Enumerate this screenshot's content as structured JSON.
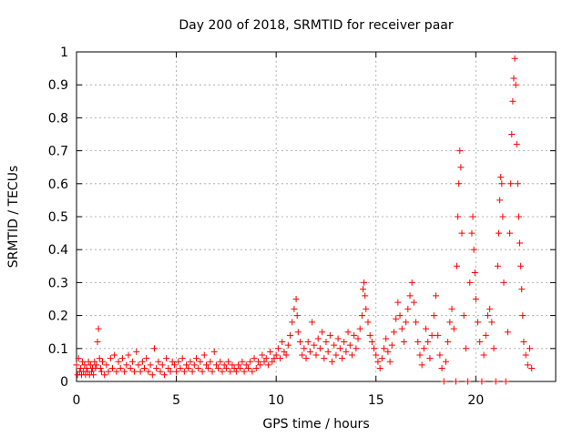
{
  "chart_data": {
    "type": "scatter",
    "title": "Day 200 of 2018, SRMTID for receiver paar",
    "xlabel": "GPS time / hours",
    "ylabel": "SRMTID / TECUs",
    "xlim": [
      0,
      24
    ],
    "ylim": [
      0,
      1
    ],
    "xticks": [
      0,
      5,
      10,
      15,
      20
    ],
    "yticks": [
      0,
      0.1,
      0.2,
      0.3,
      0.4,
      0.5,
      0.6,
      0.7,
      0.8,
      0.9,
      1
    ],
    "xtick_labels": [
      "0",
      "5",
      "10",
      "15",
      "20"
    ],
    "ytick_labels": [
      "0",
      "0.1",
      "0.2",
      "0.3",
      "0.4",
      "0.5",
      "0.6",
      "0.7",
      "0.8",
      "0.9",
      "1"
    ],
    "grid": true,
    "marker": "+",
    "series": [
      {
        "name": "SRMTID",
        "color": "#ff0000",
        "points": [
          [
            0.0,
            0.05
          ],
          [
            0.05,
            0.02
          ],
          [
            0.1,
            0.07
          ],
          [
            0.15,
            0.03
          ],
          [
            0.2,
            0.04
          ],
          [
            0.25,
            0.02
          ],
          [
            0.3,
            0.06
          ],
          [
            0.35,
            0.03
          ],
          [
            0.4,
            0.05
          ],
          [
            0.45,
            0.02
          ],
          [
            0.5,
            0.04
          ],
          [
            0.55,
            0.03
          ],
          [
            0.6,
            0.06
          ],
          [
            0.65,
            0.02
          ],
          [
            0.7,
            0.05
          ],
          [
            0.75,
            0.03
          ],
          [
            0.8,
            0.04
          ],
          [
            0.85,
            0.02
          ],
          [
            0.9,
            0.06
          ],
          [
            0.95,
            0.04
          ],
          [
            1.0,
            0.05
          ],
          [
            1.05,
            0.12
          ],
          [
            1.1,
            0.16
          ],
          [
            1.15,
            0.07
          ],
          [
            1.2,
            0.04
          ],
          [
            1.25,
            0.03
          ],
          [
            1.3,
            0.06
          ],
          [
            1.4,
            0.02
          ],
          [
            1.5,
            0.05
          ],
          [
            1.6,
            0.03
          ],
          [
            1.7,
            0.07
          ],
          [
            1.8,
            0.04
          ],
          [
            1.9,
            0.08
          ],
          [
            2.0,
            0.03
          ],
          [
            2.1,
            0.06
          ],
          [
            2.2,
            0.04
          ],
          [
            2.3,
            0.07
          ],
          [
            2.4,
            0.03
          ],
          [
            2.5,
            0.05
          ],
          [
            2.6,
            0.08
          ],
          [
            2.7,
            0.04
          ],
          [
            2.8,
            0.06
          ],
          [
            2.9,
            0.03
          ],
          [
            3.0,
            0.09
          ],
          [
            3.1,
            0.05
          ],
          [
            3.2,
            0.03
          ],
          [
            3.3,
            0.06
          ],
          [
            3.4,
            0.04
          ],
          [
            3.5,
            0.07
          ],
          [
            3.6,
            0.03
          ],
          [
            3.7,
            0.05
          ],
          [
            3.8,
            0.02
          ],
          [
            3.9,
            0.1
          ],
          [
            4.0,
            0.04
          ],
          [
            4.1,
            0.06
          ],
          [
            4.2,
            0.03
          ],
          [
            4.3,
            0.05
          ],
          [
            4.4,
            0.02
          ],
          [
            4.5,
            0.07
          ],
          [
            4.6,
            0.04
          ],
          [
            4.7,
            0.03
          ],
          [
            4.8,
            0.06
          ],
          [
            4.9,
            0.05
          ],
          [
            5.0,
            0.03
          ],
          [
            5.1,
            0.06
          ],
          [
            5.2,
            0.04
          ],
          [
            5.3,
            0.07
          ],
          [
            5.4,
            0.03
          ],
          [
            5.5,
            0.05
          ],
          [
            5.6,
            0.04
          ],
          [
            5.7,
            0.06
          ],
          [
            5.8,
            0.03
          ],
          [
            5.9,
            0.05
          ],
          [
            6.0,
            0.07
          ],
          [
            6.1,
            0.04
          ],
          [
            6.2,
            0.06
          ],
          [
            6.3,
            0.03
          ],
          [
            6.4,
            0.08
          ],
          [
            6.5,
            0.05
          ],
          [
            6.6,
            0.04
          ],
          [
            6.7,
            0.06
          ],
          [
            6.8,
            0.03
          ],
          [
            6.9,
            0.09
          ],
          [
            7.0,
            0.05
          ],
          [
            7.1,
            0.04
          ],
          [
            7.2,
            0.06
          ],
          [
            7.3,
            0.03
          ],
          [
            7.4,
            0.05
          ],
          [
            7.5,
            0.04
          ],
          [
            7.6,
            0.06
          ],
          [
            7.7,
            0.03
          ],
          [
            7.8,
            0.05
          ],
          [
            7.9,
            0.04
          ],
          [
            8.0,
            0.03
          ],
          [
            8.1,
            0.05
          ],
          [
            8.2,
            0.04
          ],
          [
            8.3,
            0.06
          ],
          [
            8.4,
            0.03
          ],
          [
            8.5,
            0.05
          ],
          [
            8.6,
            0.04
          ],
          [
            8.7,
            0.06
          ],
          [
            8.8,
            0.03
          ],
          [
            8.9,
            0.07
          ],
          [
            9.0,
            0.04
          ],
          [
            9.1,
            0.06
          ],
          [
            9.2,
            0.05
          ],
          [
            9.3,
            0.08
          ],
          [
            9.4,
            0.06
          ],
          [
            9.5,
            0.07
          ],
          [
            9.6,
            0.05
          ],
          [
            9.7,
            0.09
          ],
          [
            9.8,
            0.06
          ],
          [
            9.9,
            0.07
          ],
          [
            10.0,
            0.08
          ],
          [
            10.1,
            0.1
          ],
          [
            10.2,
            0.07
          ],
          [
            10.3,
            0.12
          ],
          [
            10.4,
            0.09
          ],
          [
            10.5,
            0.08
          ],
          [
            10.6,
            0.11
          ],
          [
            10.7,
            0.14
          ],
          [
            10.8,
            0.18
          ],
          [
            10.9,
            0.22
          ],
          [
            11.0,
            0.25
          ],
          [
            11.05,
            0.2
          ],
          [
            11.1,
            0.15
          ],
          [
            11.2,
            0.12
          ],
          [
            11.3,
            0.08
          ],
          [
            11.4,
            0.1
          ],
          [
            11.5,
            0.07
          ],
          [
            11.6,
            0.12
          ],
          [
            11.7,
            0.09
          ],
          [
            11.8,
            0.18
          ],
          [
            11.9,
            0.11
          ],
          [
            12.0,
            0.08
          ],
          [
            12.1,
            0.13
          ],
          [
            12.2,
            0.1
          ],
          [
            12.3,
            0.15
          ],
          [
            12.4,
            0.07
          ],
          [
            12.5,
            0.12
          ],
          [
            12.6,
            0.09
          ],
          [
            12.7,
            0.14
          ],
          [
            12.8,
            0.06
          ],
          [
            12.9,
            0.11
          ],
          [
            13.0,
            0.08
          ],
          [
            13.1,
            0.13
          ],
          [
            13.2,
            0.1
          ],
          [
            13.3,
            0.07
          ],
          [
            13.4,
            0.12
          ],
          [
            13.5,
            0.09
          ],
          [
            13.6,
            0.15
          ],
          [
            13.7,
            0.11
          ],
          [
            13.8,
            0.08
          ],
          [
            13.9,
            0.14
          ],
          [
            14.0,
            0.1
          ],
          [
            14.1,
            0.13
          ],
          [
            14.2,
            0.16
          ],
          [
            14.3,
            0.2
          ],
          [
            14.35,
            0.28
          ],
          [
            14.4,
            0.3
          ],
          [
            14.45,
            0.26
          ],
          [
            14.5,
            0.22
          ],
          [
            14.6,
            0.18
          ],
          [
            14.7,
            0.14
          ],
          [
            14.8,
            0.12
          ],
          [
            14.9,
            0.1
          ],
          [
            15.0,
            0.08
          ],
          [
            15.1,
            0.06
          ],
          [
            15.2,
            0.04
          ],
          [
            15.3,
            0.07
          ],
          [
            15.4,
            0.1
          ],
          [
            15.5,
            0.13
          ],
          [
            15.6,
            0.09
          ],
          [
            15.7,
            0.06
          ],
          [
            15.8,
            0.11
          ],
          [
            15.9,
            0.15
          ],
          [
            16.0,
            0.19
          ],
          [
            16.1,
            0.24
          ],
          [
            16.2,
            0.2
          ],
          [
            16.3,
            0.16
          ],
          [
            16.4,
            0.12
          ],
          [
            16.5,
            0.18
          ],
          [
            16.6,
            0.22
          ],
          [
            16.7,
            0.26
          ],
          [
            16.8,
            0.3
          ],
          [
            16.9,
            0.24
          ],
          [
            17.0,
            0.18
          ],
          [
            17.1,
            0.12
          ],
          [
            17.2,
            0.08
          ],
          [
            17.3,
            0.05
          ],
          [
            17.4,
            0.1
          ],
          [
            17.5,
            0.16
          ],
          [
            17.6,
            0.12
          ],
          [
            17.7,
            0.07
          ],
          [
            17.8,
            0.14
          ],
          [
            17.9,
            0.2
          ],
          [
            18.0,
            0.26
          ],
          [
            18.1,
            0.14
          ],
          [
            18.2,
            0.08
          ],
          [
            18.3,
            0.04
          ],
          [
            18.4,
            0.0
          ],
          [
            18.5,
            0.06
          ],
          [
            18.6,
            0.12
          ],
          [
            18.7,
            0.18
          ],
          [
            18.8,
            0.22
          ],
          [
            18.9,
            0.16
          ],
          [
            19.0,
            0.0
          ],
          [
            19.05,
            0.35
          ],
          [
            19.1,
            0.5
          ],
          [
            19.15,
            0.6
          ],
          [
            19.2,
            0.7
          ],
          [
            19.25,
            0.65
          ],
          [
            19.3,
            0.45
          ],
          [
            19.4,
            0.2
          ],
          [
            19.5,
            0.1
          ],
          [
            19.6,
            0.0
          ],
          [
            19.7,
            0.3
          ],
          [
            19.8,
            0.45
          ],
          [
            19.85,
            0.5
          ],
          [
            19.9,
            0.4
          ],
          [
            19.95,
            0.33
          ],
          [
            20.0,
            0.25
          ],
          [
            20.1,
            0.18
          ],
          [
            20.2,
            0.12
          ],
          [
            20.3,
            0.0
          ],
          [
            20.4,
            0.08
          ],
          [
            20.5,
            0.14
          ],
          [
            20.6,
            0.2
          ],
          [
            20.7,
            0.22
          ],
          [
            20.8,
            0.18
          ],
          [
            20.9,
            0.1
          ],
          [
            21.0,
            0.0
          ],
          [
            21.1,
            0.35
          ],
          [
            21.15,
            0.45
          ],
          [
            21.2,
            0.55
          ],
          [
            21.25,
            0.62
          ],
          [
            21.3,
            0.6
          ],
          [
            21.35,
            0.5
          ],
          [
            21.4,
            0.3
          ],
          [
            21.5,
            0.0
          ],
          [
            21.6,
            0.15
          ],
          [
            21.7,
            0.45
          ],
          [
            21.75,
            0.6
          ],
          [
            21.8,
            0.75
          ],
          [
            21.85,
            0.85
          ],
          [
            21.9,
            0.92
          ],
          [
            21.95,
            0.98
          ],
          [
            22.0,
            0.9
          ],
          [
            22.05,
            0.72
          ],
          [
            22.1,
            0.6
          ],
          [
            22.15,
            0.5
          ],
          [
            22.2,
            0.42
          ],
          [
            22.25,
            0.35
          ],
          [
            22.3,
            0.28
          ],
          [
            22.35,
            0.2
          ],
          [
            22.4,
            0.12
          ],
          [
            22.5,
            0.08
          ],
          [
            22.6,
            0.05
          ],
          [
            22.7,
            0.1
          ],
          [
            22.8,
            0.04
          ]
        ]
      }
    ]
  }
}
